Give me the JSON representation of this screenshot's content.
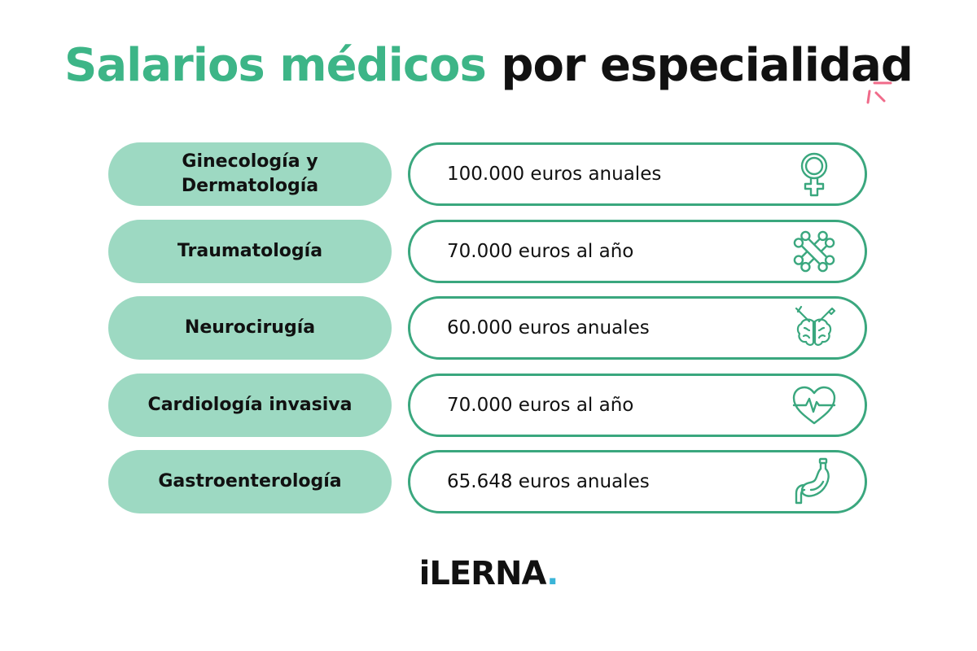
{
  "title": {
    "part1": "Salarios médicos",
    "part2": "por especialidad"
  },
  "rows": [
    {
      "label": "Ginecología y Dermatología",
      "value": "100.000 euros anuales",
      "icon": "female-symbol-icon"
    },
    {
      "label": "Traumatología",
      "value": "70.000 euros al año",
      "icon": "crossed-bones-icon"
    },
    {
      "label": "Neurocirugía",
      "value": "60.000 euros anuales",
      "icon": "brain-surgery-icon"
    },
    {
      "label": "Cardiología invasiva",
      "value": "70.000 euros al año",
      "icon": "heart-pulse-icon"
    },
    {
      "label": "Gastroenterología",
      "value": "65.648 euros anuales",
      "icon": "stomach-icon"
    }
  ],
  "logo": {
    "text": "iLERNA",
    "dot": "."
  },
  "colors": {
    "title_green": "#3db587",
    "pill_fill": "#9dd9c2",
    "pill_border": "#3aa77e",
    "sparkle": "#f06b8a",
    "logo_dot": "#3bb5d8"
  }
}
